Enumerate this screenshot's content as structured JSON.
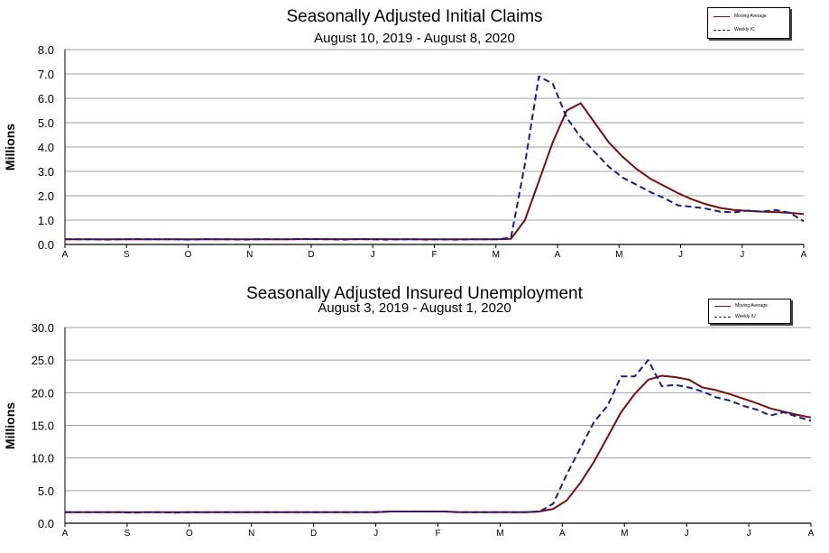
{
  "charts": [
    {
      "title": "Seasonally Adjusted Initial Claims",
      "subtitle": "August 10, 2019 - August 8, 2020",
      "legend": {
        "ma": "Moving Average",
        "weekly": "Weekly IC"
      }
    },
    {
      "title": "Seasonally Adjusted Insured Unemployment",
      "subtitle": "August 3, 2019 - August 1, 2020",
      "legend": {
        "ma": "Moving Average",
        "weekly": "Weekly IU"
      }
    }
  ],
  "colors": {
    "moving_average": "#7a0e0e",
    "weekly": "#1a1a8c",
    "grid": "#a0a0a0"
  },
  "chart_data": [
    {
      "type": "line",
      "title": "Seasonally Adjusted Initial Claims",
      "subtitle": "August 10, 2019 - August 8, 2020",
      "ylabel": "Millions",
      "xlabel": "",
      "ylim": [
        0,
        8
      ],
      "yticks": [
        "0.0",
        "1.0",
        "2.0",
        "3.0",
        "4.0",
        "5.0",
        "6.0",
        "7.0",
        "8.0"
      ],
      "xticks": [
        "A",
        "S",
        "O",
        "N",
        "D",
        "J",
        "F",
        "M",
        "A",
        "M",
        "J",
        "J",
        "A"
      ],
      "grid": true,
      "legend_position": "top-right",
      "series": [
        {
          "name": "Moving Average",
          "style": "solid",
          "values": [
            0.21,
            0.21,
            0.21,
            0.21,
            0.21,
            0.21,
            0.21,
            0.21,
            0.21,
            0.21,
            0.21,
            0.21,
            0.21,
            0.21,
            0.21,
            0.21,
            0.21,
            0.22,
            0.22,
            0.22,
            0.22,
            0.22,
            0.22,
            0.22,
            0.21,
            0.21,
            0.21,
            0.21,
            0.21,
            0.21,
            0.21,
            0.21,
            0.23,
            1.0,
            2.6,
            4.2,
            5.5,
            5.8,
            5.0,
            4.2,
            3.6,
            3.1,
            2.7,
            2.4,
            2.1,
            1.85,
            1.65,
            1.5,
            1.42,
            1.38,
            1.35,
            1.33,
            1.3,
            1.25
          ]
        },
        {
          "name": "Weekly IC",
          "style": "dashed",
          "values": [
            0.21,
            0.21,
            0.21,
            0.2,
            0.21,
            0.22,
            0.21,
            0.21,
            0.21,
            0.2,
            0.22,
            0.21,
            0.21,
            0.2,
            0.22,
            0.21,
            0.21,
            0.23,
            0.22,
            0.21,
            0.2,
            0.22,
            0.21,
            0.2,
            0.21,
            0.21,
            0.2,
            0.21,
            0.2,
            0.21,
            0.21,
            0.21,
            0.28,
            3.3,
            6.9,
            6.6,
            5.2,
            4.4,
            3.8,
            3.2,
            2.75,
            2.45,
            2.15,
            1.9,
            1.6,
            1.55,
            1.47,
            1.35,
            1.32,
            1.39,
            1.35,
            1.42,
            1.3,
            0.95
          ]
        }
      ]
    },
    {
      "type": "line",
      "title": "Seasonally Adjusted Insured Unemployment",
      "subtitle": "August 3, 2019 - August 1, 2020",
      "ylabel": "Millions",
      "xlabel": "",
      "ylim": [
        0,
        30
      ],
      "yticks": [
        "0.0",
        "5.0",
        "10.0",
        "15.0",
        "20.0",
        "25.0",
        "30.0"
      ],
      "xticks": [
        "A",
        "S",
        "O",
        "N",
        "D",
        "J",
        "F",
        "M",
        "A",
        "M",
        "J",
        "J",
        "A"
      ],
      "grid": true,
      "legend_position": "top-right",
      "series": [
        {
          "name": "Moving Average",
          "style": "solid",
          "values": [
            1.7,
            1.7,
            1.7,
            1.7,
            1.7,
            1.7,
            1.7,
            1.7,
            1.7,
            1.7,
            1.7,
            1.7,
            1.7,
            1.7,
            1.7,
            1.7,
            1.7,
            1.7,
            1.7,
            1.7,
            1.7,
            1.7,
            1.7,
            1.7,
            1.8,
            1.8,
            1.8,
            1.8,
            1.8,
            1.7,
            1.7,
            1.7,
            1.7,
            1.7,
            1.7,
            1.8,
            2.2,
            3.5,
            6.2,
            9.4,
            13.2,
            17.0,
            19.8,
            22.0,
            22.6,
            22.4,
            22.0,
            20.8,
            20.4,
            19.8,
            19.1,
            18.4,
            17.6,
            17.1,
            16.6,
            16.2
          ]
        },
        {
          "name": "Weekly IU",
          "style": "dashed",
          "values": [
            1.7,
            1.7,
            1.7,
            1.7,
            1.7,
            1.6,
            1.7,
            1.7,
            1.6,
            1.7,
            1.7,
            1.7,
            1.7,
            1.7,
            1.7,
            1.7,
            1.7,
            1.7,
            1.7,
            1.7,
            1.7,
            1.7,
            1.7,
            1.7,
            1.8,
            1.8,
            1.8,
            1.8,
            1.8,
            1.7,
            1.7,
            1.7,
            1.7,
            1.7,
            1.7,
            1.8,
            3.0,
            7.5,
            11.5,
            15.5,
            18.0,
            22.5,
            22.5,
            25.0,
            21.0,
            21.2,
            20.8,
            20.2,
            19.3,
            18.8,
            18.0,
            17.4,
            16.5,
            17.0,
            16.3,
            15.7
          ]
        }
      ]
    }
  ]
}
